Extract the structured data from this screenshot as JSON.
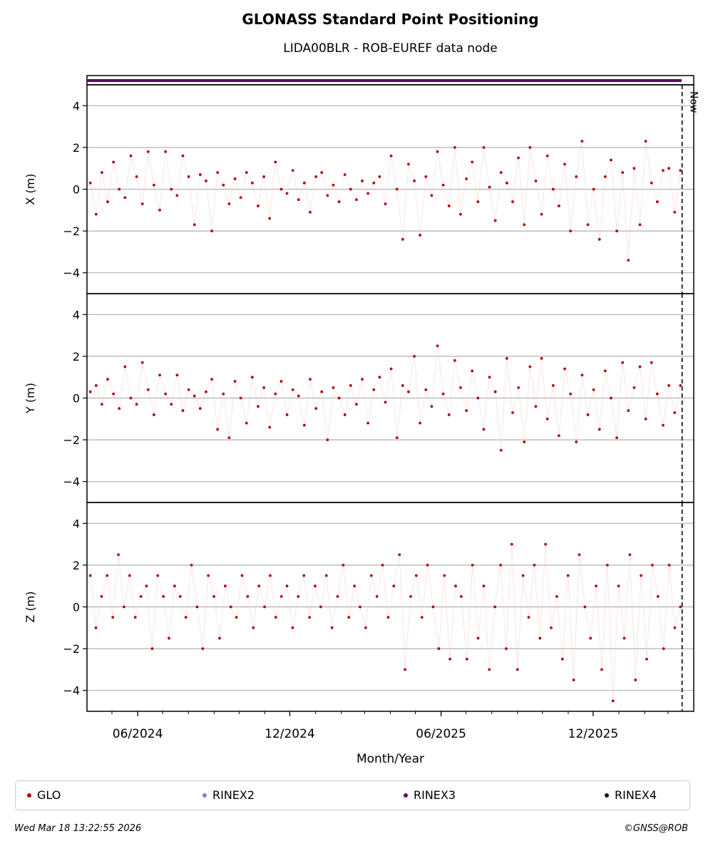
{
  "title": "GLONASS Standard Point Positioning",
  "subtitle": "LIDA00BLR - ROB-EUREF data node",
  "timestamp": "Wed Mar 18 13:22:55 2026",
  "copyright": "©GNSS@ROB",
  "now_label": "Now",
  "xlabel": "Month/Year",
  "legend": [
    {
      "label": "GLO",
      "color": "#b20000"
    },
    {
      "label": "RINEX2",
      "color": "#8080c0"
    },
    {
      "label": "RINEX3",
      "color": "#660066"
    },
    {
      "label": "RINEX4",
      "color": "#1a0a1a"
    }
  ],
  "chart_data": {
    "type": "scatter",
    "x_start": "2024-04-01",
    "x_end": "2026-04-01",
    "data_end": "2026-03-16",
    "now": "2026-03-18",
    "x_ticks": [
      "06/2024",
      "12/2024",
      "06/2025",
      "12/2025"
    ],
    "x_tick_dates": [
      "2024-06-01",
      "2024-12-01",
      "2025-06-01",
      "2025-12-01"
    ],
    "rinex_bar": {
      "series": "RINEX3",
      "start": "2024-04-01",
      "end": "2026-03-16"
    },
    "panels": [
      {
        "ylabel": "X (m)",
        "ylim": [
          -5,
          5
        ],
        "yticks": [
          4,
          2,
          0,
          -2,
          -4
        ],
        "values": [
          0.3,
          -1.2,
          0.8,
          -0.6,
          1.3,
          0.0,
          -0.4,
          1.6,
          0.6,
          -0.7,
          1.8,
          0.2,
          -1.0,
          1.8,
          0.0,
          -0.3,
          1.6,
          0.6,
          -1.7,
          0.7,
          0.4,
          -2.0,
          0.8,
          0.2,
          -0.7,
          0.5,
          -0.4,
          0.8,
          0.3,
          -0.8,
          0.6,
          -1.4,
          1.3,
          0.0,
          -0.2,
          0.9,
          -0.5,
          0.3,
          -1.1,
          0.6,
          0.8,
          -0.3,
          0.2,
          -0.6,
          0.7,
          0.0,
          -0.5,
          0.4,
          -0.2,
          0.3,
          0.6,
          -0.7,
          1.6,
          0.0,
          -2.4,
          1.2,
          0.4,
          -2.2,
          0.6,
          -0.3,
          1.8,
          0.2,
          -0.8,
          2.0,
          -1.2,
          0.5,
          1.3,
          -0.6,
          2.0,
          0.1,
          -1.5,
          0.8,
          0.3,
          -0.6,
          1.5,
          -1.7,
          2.0,
          0.4,
          -1.2,
          1.6,
          0.0,
          -0.8,
          1.2,
          -2.0,
          0.6,
          2.3,
          -1.7,
          0.0,
          -2.4,
          0.6,
          1.4,
          -2.0,
          0.8,
          -3.4,
          1.0,
          -1.7,
          2.3,
          0.3,
          -0.6,
          0.9,
          1.0,
          -1.1,
          0.9
        ]
      },
      {
        "ylabel": "Y (m)",
        "ylim": [
          -5,
          5
        ],
        "yticks": [
          4,
          2,
          0,
          -2,
          -4
        ],
        "values": [
          0.3,
          0.6,
          -0.3,
          0.9,
          0.2,
          -0.5,
          1.5,
          0.0,
          -0.3,
          1.7,
          0.4,
          -0.8,
          1.1,
          0.2,
          -0.3,
          1.1,
          -0.6,
          0.4,
          0.1,
          -0.5,
          0.3,
          0.9,
          -1.5,
          0.2,
          -1.9,
          0.8,
          0.0,
          -1.2,
          1.0,
          -0.4,
          0.5,
          -1.4,
          0.2,
          0.8,
          -0.8,
          0.4,
          0.1,
          -1.3,
          0.9,
          -0.5,
          0.3,
          -2.0,
          0.5,
          0.0,
          -0.8,
          0.6,
          -0.3,
          0.9,
          -1.2,
          0.4,
          1.0,
          -0.2,
          1.4,
          -1.9,
          0.6,
          0.3,
          2.0,
          -1.2,
          0.4,
          -0.4,
          2.5,
          0.2,
          -0.8,
          1.8,
          0.5,
          -0.6,
          1.3,
          0.0,
          -1.5,
          1.0,
          0.3,
          -2.5,
          1.9,
          -0.7,
          0.5,
          -2.1,
          1.5,
          -0.4,
          1.9,
          -1.0,
          0.6,
          -1.8,
          1.4,
          0.2,
          -2.1,
          1.1,
          -0.8,
          0.4,
          -1.5,
          1.3,
          0.0,
          -1.9,
          1.7,
          -0.6,
          0.5,
          1.5,
          -1.0,
          1.7,
          0.2,
          -1.3,
          0.6,
          -0.7,
          0.6
        ]
      },
      {
        "ylabel": "Z (m)",
        "ylim": [
          -5,
          5
        ],
        "yticks": [
          4,
          2,
          0,
          -2,
          -4
        ],
        "values": [
          1.5,
          -1.0,
          0.5,
          1.5,
          -0.5,
          2.5,
          0.0,
          1.5,
          -0.5,
          0.5,
          1.0,
          -2.0,
          1.5,
          0.5,
          -1.5,
          1.0,
          0.5,
          -0.5,
          2.0,
          0.0,
          -2.0,
          1.5,
          0.5,
          -1.5,
          1.0,
          0.0,
          -0.5,
          1.5,
          0.5,
          -1.0,
          1.0,
          0.0,
          1.5,
          -0.5,
          0.5,
          1.0,
          -1.0,
          0.5,
          1.5,
          -0.5,
          1.0,
          0.0,
          1.5,
          -1.0,
          0.5,
          2.0,
          -0.5,
          1.0,
          0.0,
          -1.0,
          1.5,
          0.5,
          2.0,
          -0.5,
          1.0,
          2.5,
          -3.0,
          0.5,
          1.5,
          -0.5,
          2.0,
          0.0,
          -2.0,
          1.5,
          -2.5,
          1.0,
          0.5,
          -2.5,
          2.0,
          -1.5,
          1.0,
          -3.0,
          0.0,
          2.0,
          -2.0,
          3.0,
          -3.0,
          1.5,
          -0.5,
          2.0,
          -1.5,
          3.0,
          -1.0,
          0.5,
          -2.5,
          1.5,
          -3.5,
          2.5,
          0.0,
          -1.5,
          1.0,
          -3.0,
          2.0,
          -4.5,
          1.0,
          -1.5,
          2.5,
          -3.5,
          1.5,
          -2.5,
          2.0,
          0.5,
          -2.0,
          2.0,
          -1.0,
          0.0
        ]
      }
    ]
  }
}
